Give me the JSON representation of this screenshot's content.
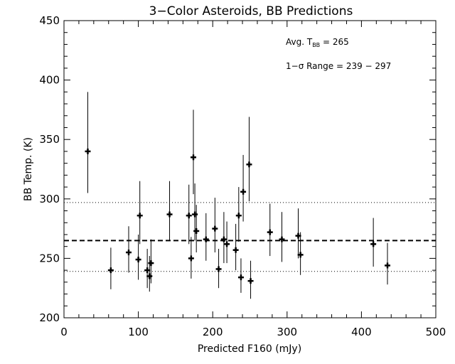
{
  "chart_data": {
    "type": "scatter",
    "title": "3−Color Asteroids, BB Predictions",
    "xlabel": "Predicted F160 (mJy)",
    "ylabel": "BB Temp. (K)",
    "xlim": [
      0,
      500
    ],
    "ylim": [
      200,
      450
    ],
    "x_ticks": [
      0,
      100,
      200,
      300,
      400,
      500
    ],
    "y_ticks": [
      200,
      250,
      300,
      350,
      400,
      450
    ],
    "x_tick_labels": [
      "0",
      "100",
      "200",
      "300",
      "400",
      "500"
    ],
    "y_tick_labels": [
      "200",
      "250",
      "300",
      "350",
      "400",
      "450"
    ],
    "annotations": {
      "avg_prefix": "Avg. T",
      "avg_sub": "BB",
      "avg_suffix": " = 265",
      "range_text": "1−σ Range = 239 − 297"
    },
    "reference_lines": [
      {
        "y": 265,
        "style": "dashed"
      },
      {
        "y": 239,
        "style": "dotted"
      },
      {
        "y": 297,
        "style": "dotted"
      }
    ],
    "points": [
      {
        "x": 32,
        "y": 340,
        "ylo": 305,
        "yhi": 390
      },
      {
        "x": 63,
        "y": 240,
        "ylo": 224,
        "yhi": 259
      },
      {
        "x": 87,
        "y": 255,
        "ylo": 238,
        "yhi": 277
      },
      {
        "x": 100,
        "y": 249,
        "ylo": 232,
        "yhi": 270
      },
      {
        "x": 102,
        "y": 286,
        "ylo": 262,
        "yhi": 315
      },
      {
        "x": 112,
        "y": 240,
        "ylo": 225,
        "yhi": 258
      },
      {
        "x": 115,
        "y": 235,
        "ylo": 222,
        "yhi": 252
      },
      {
        "x": 117,
        "y": 246,
        "ylo": 229,
        "yhi": 266
      },
      {
        "x": 142,
        "y": 287,
        "ylo": 265,
        "yhi": 315
      },
      {
        "x": 168,
        "y": 286,
        "ylo": 262,
        "yhi": 312
      },
      {
        "x": 171,
        "y": 250,
        "ylo": 233,
        "yhi": 268
      },
      {
        "x": 174,
        "y": 335,
        "ylo": 304,
        "yhi": 375
      },
      {
        "x": 176,
        "y": 287,
        "ylo": 265,
        "yhi": 313
      },
      {
        "x": 178,
        "y": 273,
        "ylo": 255,
        "yhi": 295
      },
      {
        "x": 191,
        "y": 266,
        "ylo": 248,
        "yhi": 288
      },
      {
        "x": 203,
        "y": 275,
        "ylo": 255,
        "yhi": 301
      },
      {
        "x": 208,
        "y": 241,
        "ylo": 225,
        "yhi": 258
      },
      {
        "x": 215,
        "y": 266,
        "ylo": 246,
        "yhi": 289
      },
      {
        "x": 219,
        "y": 262,
        "ylo": 246,
        "yhi": 281
      },
      {
        "x": 231,
        "y": 257,
        "ylo": 240,
        "yhi": 279
      },
      {
        "x": 235,
        "y": 286,
        "ylo": 264,
        "yhi": 310
      },
      {
        "x": 238,
        "y": 234,
        "ylo": 221,
        "yhi": 250
      },
      {
        "x": 241,
        "y": 306,
        "ylo": 281,
        "yhi": 337
      },
      {
        "x": 249,
        "y": 329,
        "ylo": 298,
        "yhi": 369
      },
      {
        "x": 251,
        "y": 231,
        "ylo": 216,
        "yhi": 248
      },
      {
        "x": 277,
        "y": 272,
        "ylo": 252,
        "yhi": 296
      },
      {
        "x": 293,
        "y": 266,
        "ylo": 247,
        "yhi": 289
      },
      {
        "x": 315,
        "y": 269,
        "ylo": 250,
        "yhi": 292
      },
      {
        "x": 318,
        "y": 253,
        "ylo": 236,
        "yhi": 272
      },
      {
        "x": 416,
        "y": 262,
        "ylo": 243,
        "yhi": 284
      },
      {
        "x": 435,
        "y": 244,
        "ylo": 228,
        "yhi": 263
      }
    ]
  }
}
